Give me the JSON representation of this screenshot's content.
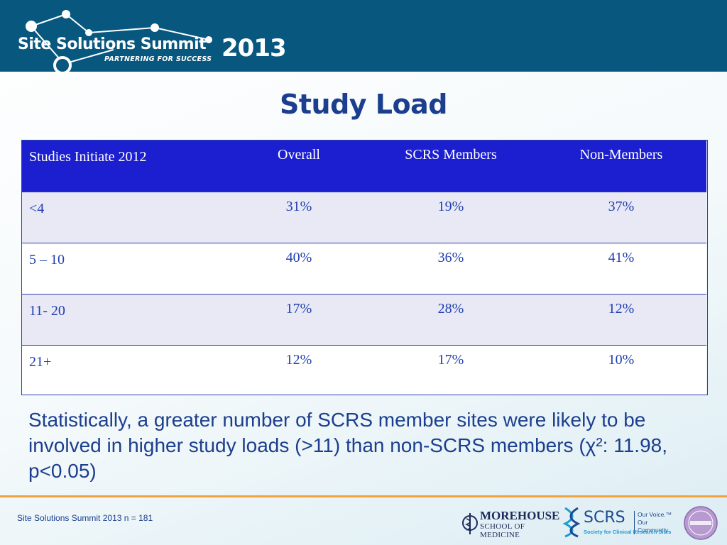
{
  "header": {
    "logo_title": "Site Solutions Summit",
    "logo_year": "2013",
    "logo_tagline": "PARTNERING FOR SUCCESS",
    "background_color": "#07577f"
  },
  "slide": {
    "title": "Study Load"
  },
  "table": {
    "headers": [
      "Studies Initiate 2012",
      "Overall",
      "SCRS Members",
      "Non-Members"
    ],
    "rows": [
      [
        "<4",
        "31%",
        "19%",
        "37%"
      ],
      [
        "5 – 10",
        "40%",
        "36%",
        "41%"
      ],
      [
        "11- 20",
        "17%",
        "28%",
        "12%"
      ],
      [
        "21+",
        "12%",
        "17%",
        "10%"
      ]
    ],
    "header_color": "#1c1fd0",
    "text_color": "#1f3fb0"
  },
  "statement": "Statistically, a greater number of SCRS member sites were likely to be involved in higher study loads (>11) than non-SCRS members (χ²: 11.98, p<0.05)",
  "footer": {
    "note": "Site Solutions Summit 2013 n = 181",
    "accent_color": "#f2a23a"
  },
  "sponsors": {
    "morehouse": {
      "name": "MOREHOUSE",
      "sub": "SCHOOL OF MEDICINE",
      "icon": "caduceus-icon"
    },
    "scrs": {
      "name": "SCRS",
      "slogan": "Our Voice.™ Our Community.",
      "sub": "Society for Clinical Research Sites",
      "icon": "dna-helix-icon"
    },
    "badge": {
      "icon": "accredited-provider-seal"
    }
  }
}
